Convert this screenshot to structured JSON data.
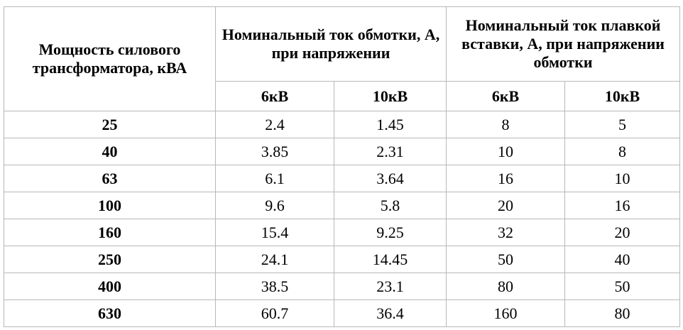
{
  "table": {
    "header": {
      "power": "Мощность силового трансформатора, кВА",
      "group1": "Номинальный ток обмотки, А, при напряжении",
      "group2": "Номинальный ток плавкой вставки, А, при напряжении обмотки",
      "subcolumns": [
        "6кВ",
        "10кВ",
        "6кВ",
        "10кВ"
      ]
    },
    "rows": [
      [
        "25",
        "2.4",
        "1.45",
        "8",
        "5"
      ],
      [
        "40",
        "3.85",
        "2.31",
        "10",
        "8"
      ],
      [
        "63",
        "6.1",
        "3.64",
        "16",
        "10"
      ],
      [
        "100",
        "9.6",
        "5.8",
        "20",
        "16"
      ],
      [
        "160",
        "15.4",
        "9.25",
        "32",
        "20"
      ],
      [
        "250",
        "24.1",
        "14.45",
        "50",
        "40"
      ],
      [
        "400",
        "38.5",
        "23.1",
        "80",
        "50"
      ],
      [
        "630",
        "60.7",
        "36.4",
        "160",
        "80"
      ]
    ]
  }
}
